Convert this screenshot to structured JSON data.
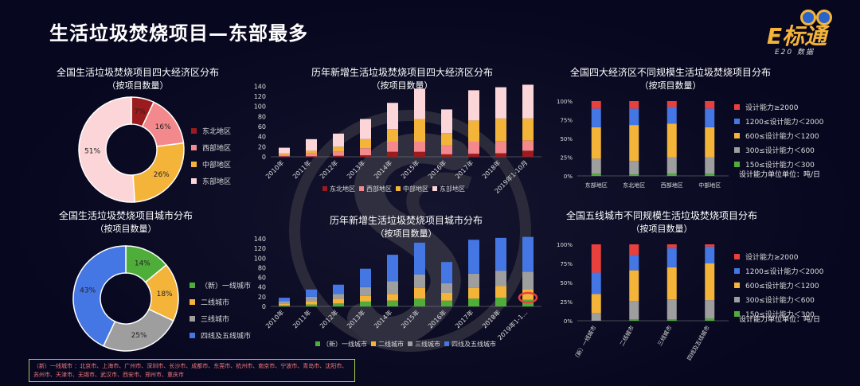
{
  "header": {
    "title": "生活垃圾焚烧项目—东部最多",
    "logo_text": "E标通",
    "logo_sub": "E20 数据"
  },
  "colors": {
    "dark_red": "#9b1b1e",
    "pink": "#f3898d",
    "orange": "#f4b43a",
    "light_pink": "#fbd5d7",
    "green": "#4fae3a",
    "gray": "#9e9e9e",
    "blue": "#4476e4",
    "red": "#e8403c"
  },
  "note": {
    "text": "（新）一线城市 ：北京市、上海市、广州市、深圳市、长沙市、成都市、东莞市、杭州市、南京市、宁波市、青岛市、沈阳市、苏州市、天津市、无锡市、武汉市、西安市、郑州市、重庆市"
  },
  "chart_data": [
    {
      "id": "pie_region",
      "type": "pie",
      "title": "全国生活垃圾焚烧项目四大经济区分布",
      "subtitle": "（按项目数量）",
      "categories": [
        "东北地区",
        "西部地区",
        "中部地区",
        "东部地区"
      ],
      "values": [
        7,
        16,
        26,
        51
      ],
      "labels": [
        "7%",
        "16%",
        "26%",
        "51%"
      ],
      "colors": [
        "#9b1b1e",
        "#f3898d",
        "#f4b43a",
        "#fbd5d7"
      ],
      "legend": "right"
    },
    {
      "id": "pie_city",
      "type": "pie",
      "title": "全国生活垃圾焚烧项目城市分布",
      "subtitle": "（按项目数量）",
      "categories": [
        "（新）一线城市",
        "二线城市",
        "三线城市",
        "四线及五线城市"
      ],
      "values": [
        14,
        18,
        25,
        43
      ],
      "labels": [
        "14%",
        "18%",
        "25%",
        "43%"
      ],
      "colors": [
        "#4fae3a",
        "#f4b43a",
        "#9e9e9e",
        "#4476e4"
      ],
      "legend": "right"
    },
    {
      "id": "bar_region_year",
      "type": "bar",
      "stacked": true,
      "title": "历年新增生活垃圾焚烧项目四大经济区分布",
      "subtitle": "（按项目数量）",
      "categories": [
        "2010年",
        "2011年",
        "2012年",
        "2013年",
        "2014年",
        "2015年",
        "2016年",
        "2017年",
        "2018年",
        "2019年1-10月"
      ],
      "ylim": [
        0,
        150
      ],
      "yticks": [
        "0",
        "20",
        "40",
        "60",
        "80",
        "100",
        "120",
        "140"
      ],
      "series": [
        {
          "name": "东北地区",
          "color": "#9b1b1e",
          "values": [
            1,
            1,
            2,
            3,
            10,
            10,
            5,
            6,
            7,
            12
          ]
        },
        {
          "name": "西部地区",
          "color": "#f3898d",
          "values": [
            3,
            6,
            8,
            14,
            20,
            20,
            18,
            24,
            24,
            20
          ]
        },
        {
          "name": "中部地区",
          "color": "#f4b43a",
          "values": [
            3,
            5,
            10,
            18,
            25,
            45,
            24,
            42,
            45,
            44
          ]
        },
        {
          "name": "东部地区",
          "color": "#fbd5d7",
          "values": [
            11,
            23,
            26,
            40,
            52,
            60,
            47,
            60,
            62,
            67
          ]
        }
      ],
      "legend": "bottom"
    },
    {
      "id": "bar_city_year",
      "type": "bar",
      "stacked": true,
      "title": "历年新增生活垃圾焚烧项目城市分布",
      "subtitle": "（按项目数量）",
      "categories": [
        "2010年",
        "2011年",
        "2012年",
        "2013年",
        "2014年",
        "2015年",
        "2016年",
        "2017年",
        "2018年",
        "2019年1-1..."
      ],
      "ylim": [
        0,
        150
      ],
      "yticks": [
        "0",
        "20",
        "40",
        "60",
        "80",
        "100",
        "120",
        "140"
      ],
      "series": [
        {
          "name": "（新）一线城市",
          "color": "#4fae3a",
          "values": [
            2,
            4,
            6,
            10,
            12,
            16,
            12,
            16,
            18,
            14
          ]
        },
        {
          "name": "二线城市",
          "color": "#f4b43a",
          "values": [
            4,
            7,
            10,
            12,
            14,
            22,
            16,
            22,
            24,
            22
          ]
        },
        {
          "name": "三线城市",
          "color": "#9e9e9e",
          "values": [
            5,
            9,
            10,
            18,
            26,
            28,
            20,
            30,
            32,
            36
          ]
        },
        {
          "name": "四线及五线城市",
          "color": "#4476e4",
          "values": [
            7,
            15,
            19,
            38,
            55,
            66,
            44,
            70,
            68,
            72
          ]
        }
      ],
      "legend": "bottom"
    },
    {
      "id": "bar_region_scale",
      "type": "bar",
      "stacked": true,
      "percent": true,
      "title": "全国四大经济区不同规模生活垃圾焚烧项目分布",
      "subtitle": "（按项目数量）",
      "categories": [
        "东部地区",
        "东北地区",
        "西部地区",
        "中部地区"
      ],
      "yticks": [
        "0%",
        "25%",
        "50%",
        "75%",
        "100%"
      ],
      "series": [
        {
          "name": "150≤设计能力＜300",
          "color": "#4fae3a",
          "values": [
            3,
            2,
            3,
            3
          ]
        },
        {
          "name": "300≤设计能力＜600",
          "color": "#9e9e9e",
          "values": [
            20,
            18,
            22,
            22
          ]
        },
        {
          "name": "600≤设计能力＜1200",
          "color": "#f4b43a",
          "values": [
            42,
            48,
            45,
            40
          ]
        },
        {
          "name": "1200≤设计能力＜2000",
          "color": "#4476e4",
          "values": [
            25,
            22,
            22,
            25
          ]
        },
        {
          "name": "设计能力≥2000",
          "color": "#e8403c",
          "values": [
            10,
            10,
            8,
            10
          ]
        }
      ],
      "unit_note": "设计能力单位单位：吨/日",
      "legend": "right"
    },
    {
      "id": "bar_city_scale",
      "type": "bar",
      "stacked": true,
      "percent": true,
      "title": "全国五线城市不同规模生活垃圾焚烧项目分布",
      "subtitle": "（按项目数量）",
      "categories": [
        "（新）一线城市",
        "二线城市",
        "三线城市",
        "四线及五线城市"
      ],
      "yticks": [
        "0%",
        "25%",
        "50%",
        "75%",
        "100%"
      ],
      "series": [
        {
          "name": "150≤设计能力＜300",
          "color": "#4fae3a",
          "values": [
            0,
            2,
            2,
            3
          ]
        },
        {
          "name": "300≤设计能力＜600",
          "color": "#9e9e9e",
          "values": [
            10,
            24,
            26,
            24
          ]
        },
        {
          "name": "600≤设计能力＜1200",
          "color": "#f4b43a",
          "values": [
            25,
            40,
            42,
            48
          ]
        },
        {
          "name": "1200≤设计能力＜2000",
          "color": "#4476e4",
          "values": [
            28,
            20,
            25,
            22
          ]
        },
        {
          "name": "设计能力≥2000",
          "color": "#e8403c",
          "values": [
            37,
            14,
            5,
            3
          ]
        }
      ],
      "unit_note": "设计能力单位单位：吨/日",
      "legend": "right"
    }
  ]
}
